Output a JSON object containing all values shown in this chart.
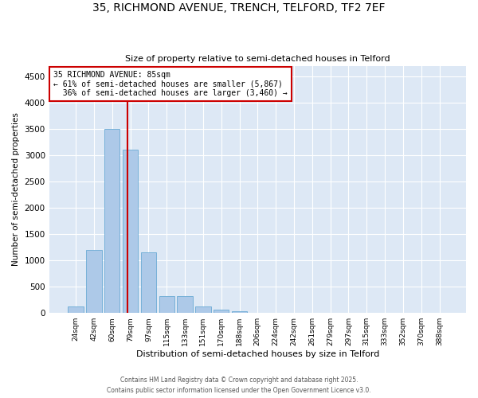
{
  "title1": "35, RICHMOND AVENUE, TRENCH, TELFORD, TF2 7EF",
  "title2": "Size of property relative to semi-detached houses in Telford",
  "xlabel": "Distribution of semi-detached houses by size in Telford",
  "ylabel": "Number of semi-detached properties",
  "categories": [
    "24sqm",
    "42sqm",
    "60sqm",
    "79sqm",
    "97sqm",
    "115sqm",
    "133sqm",
    "151sqm",
    "170sqm",
    "188sqm",
    "206sqm",
    "224sqm",
    "242sqm",
    "261sqm",
    "279sqm",
    "297sqm",
    "315sqm",
    "333sqm",
    "352sqm",
    "370sqm",
    "388sqm"
  ],
  "values": [
    120,
    1200,
    3500,
    3100,
    1150,
    320,
    320,
    120,
    60,
    30,
    10,
    5,
    2,
    1,
    1,
    0,
    0,
    0,
    0,
    0,
    0
  ],
  "bar_color": "#adc9e8",
  "bar_edge_color": "#6aaad4",
  "pct_smaller": 61,
  "n_smaller": 5867,
  "pct_larger": 36,
  "n_larger": 3460,
  "annotation_box_color": "#cc0000",
  "vline_color": "#cc0000",
  "vline_x": 2.85,
  "ylim": [
    0,
    4700
  ],
  "yticks": [
    0,
    500,
    1000,
    1500,
    2000,
    2500,
    3000,
    3500,
    4000,
    4500
  ],
  "bg_color": "#dde8f5",
  "grid_color": "#ffffff",
  "footer1": "Contains HM Land Registry data © Crown copyright and database right 2025.",
  "footer2": "Contains public sector information licensed under the Open Government Licence v3.0."
}
